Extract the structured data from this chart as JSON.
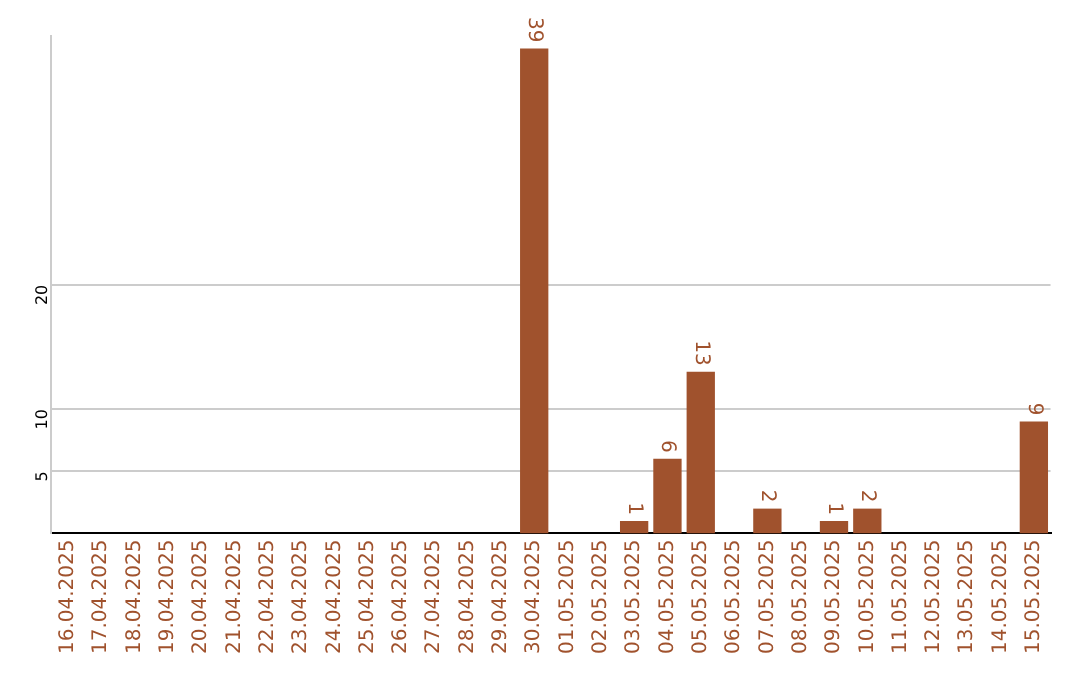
{
  "chart_data": {
    "type": "bar",
    "categories": [
      "16.04.2025",
      "17.04.2025",
      "18.04.2025",
      "19.04.2025",
      "20.04.2025",
      "21.04.2025",
      "22.04.2025",
      "23.04.2025",
      "24.04.2025",
      "25.04.2025",
      "26.04.2025",
      "27.04.2025",
      "28.04.2025",
      "29.04.2025",
      "30.04.2025",
      "01.05.2025",
      "02.05.2025",
      "03.05.2025",
      "04.05.2025",
      "05.05.2025",
      "06.05.2025",
      "07.05.2025",
      "08.05.2025",
      "09.05.2025",
      "10.05.2025",
      "11.05.2025",
      "12.05.2025",
      "13.05.2025",
      "14.05.2025",
      "15.05.2025"
    ],
    "values": [
      0,
      0,
      0,
      0,
      0,
      0,
      0,
      0,
      0,
      0,
      0,
      0,
      0,
      0,
      39,
      0,
      0,
      1,
      6,
      13,
      0,
      2,
      0,
      1,
      2,
      0,
      0,
      0,
      0,
      9
    ],
    "value_labels": [
      null,
      null,
      null,
      null,
      null,
      null,
      null,
      null,
      null,
      null,
      null,
      null,
      null,
      null,
      "39",
      null,
      null,
      "1",
      "6",
      "13",
      null,
      "2",
      null,
      "1",
      "2",
      null,
      null,
      null,
      null,
      "9"
    ],
    "color": "#a0522d",
    "ylim": [
      0,
      40
    ],
    "yticks": [
      5,
      10,
      20
    ],
    "grid": "y",
    "legend": false
  }
}
